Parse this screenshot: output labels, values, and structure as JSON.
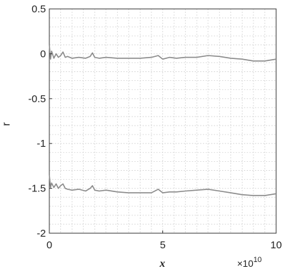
{
  "chart_data": {
    "type": "line",
    "xlabel": "x",
    "ylabel": "r",
    "x_exponent_label": "×10",
    "x_exponent_power": "10",
    "xlim": [
      0,
      10
    ],
    "ylim": [
      -2,
      0.5
    ],
    "x_ticks": [
      0,
      5,
      10
    ],
    "x_tick_labels": [
      "0",
      "5",
      "10"
    ],
    "y_ticks": [
      0.5,
      0,
      -0.5,
      -1,
      -1.5,
      -2
    ],
    "y_tick_labels": [
      "0.5",
      "0",
      "-0.5",
      "-1",
      "-1.5",
      "-2"
    ],
    "grid": true,
    "x_minor_step": 0.5,
    "y_minor_step": 0.1,
    "colors": {
      "series": "#8a8a8a",
      "grid": "#d6d6d6",
      "axis": "#333333"
    },
    "series": [
      {
        "x": [
          0,
          0.05,
          0.1,
          0.2,
          0.3,
          0.4,
          0.5,
          0.6,
          0.7,
          0.8,
          1.0,
          1.3,
          1.6,
          1.8,
          1.9,
          2.0,
          2.2,
          2.5,
          3.0,
          3.5,
          4.0,
          4.5,
          4.8,
          5.0,
          5.3,
          5.6,
          6.0,
          6.5,
          7.0,
          7.5,
          8.0,
          8.5,
          9.0,
          9.5,
          10.0
        ],
        "values": [
          0.1,
          -0.06,
          0.03,
          -0.05,
          0.0,
          -0.04,
          -0.02,
          0.02,
          -0.04,
          -0.03,
          -0.05,
          -0.04,
          -0.05,
          -0.03,
          0.01,
          -0.04,
          -0.05,
          -0.04,
          -0.05,
          -0.05,
          -0.05,
          -0.04,
          -0.02,
          -0.06,
          -0.04,
          -0.05,
          -0.04,
          -0.04,
          -0.02,
          -0.03,
          -0.05,
          -0.06,
          -0.08,
          -0.08,
          -0.06
        ]
      },
      {
        "x": [
          0,
          0.05,
          0.1,
          0.2,
          0.3,
          0.4,
          0.5,
          0.6,
          0.7,
          0.8,
          1.0,
          1.3,
          1.6,
          1.8,
          1.9,
          2.0,
          2.2,
          2.5,
          3.0,
          3.5,
          4.0,
          4.5,
          4.8,
          5.0,
          5.3,
          5.6,
          6.0,
          6.5,
          7.0,
          7.5,
          8.0,
          8.5,
          9.0,
          9.5,
          10.0
        ],
        "values": [
          -1.35,
          -1.49,
          -1.44,
          -1.49,
          -1.45,
          -1.5,
          -1.47,
          -1.45,
          -1.5,
          -1.51,
          -1.52,
          -1.51,
          -1.53,
          -1.5,
          -1.47,
          -1.52,
          -1.53,
          -1.52,
          -1.54,
          -1.55,
          -1.55,
          -1.55,
          -1.51,
          -1.55,
          -1.54,
          -1.54,
          -1.53,
          -1.52,
          -1.51,
          -1.53,
          -1.55,
          -1.57,
          -1.58,
          -1.58,
          -1.56
        ]
      }
    ]
  }
}
